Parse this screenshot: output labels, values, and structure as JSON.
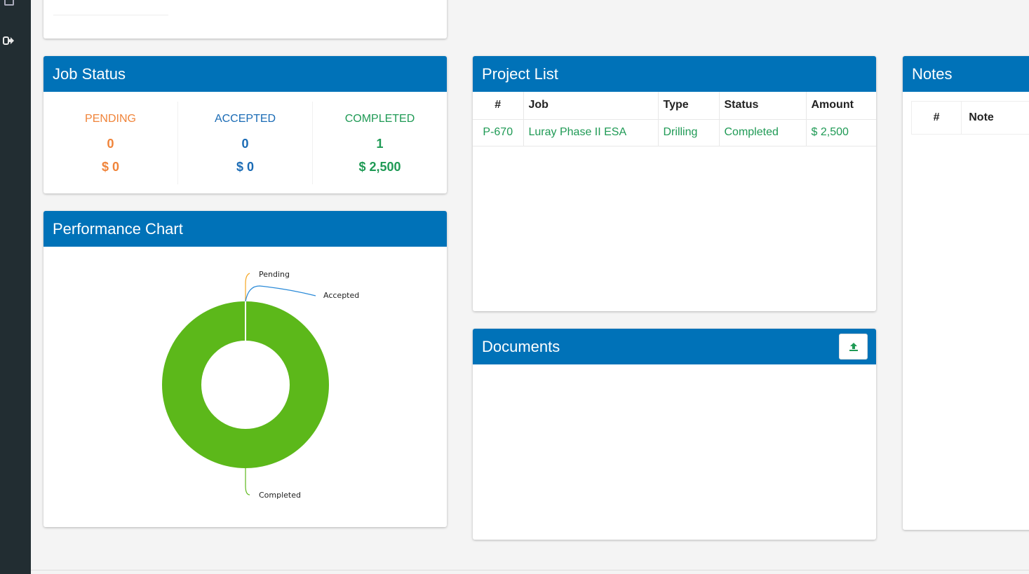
{
  "sidebar": {
    "top_icon": "dashboard-icon",
    "logout_icon": "sign-out-icon"
  },
  "job_status": {
    "title": "Job Status",
    "items": [
      {
        "label": "PENDING",
        "count": "0",
        "amount": "$ 0",
        "color": "#f0843a"
      },
      {
        "label": "ACCEPTED",
        "count": "0",
        "amount": "$ 0",
        "color": "#1a6bb5"
      },
      {
        "label": "COMPLETED",
        "count": "1",
        "amount": "$ 2,500",
        "color": "#1f9a55"
      }
    ]
  },
  "performance": {
    "title": "Performance Chart"
  },
  "chart_data": {
    "type": "pie",
    "donut": true,
    "categories": [
      "Pending",
      "Accepted",
      "Completed"
    ],
    "values": [
      0,
      0,
      1
    ],
    "colors": [
      "#f5a623",
      "#2a8ad8",
      "#5cb81a"
    ]
  },
  "project_list": {
    "title": "Project List",
    "columns": [
      "#",
      "Job",
      "Type",
      "Status",
      "Amount"
    ],
    "rows": [
      {
        "id": "P-670",
        "job": "Luray Phase II ESA",
        "type": "Drilling",
        "status": "Completed",
        "amount": "$ 2,500"
      }
    ]
  },
  "documents": {
    "title": "Documents",
    "upload_icon": "upload-icon"
  },
  "notes": {
    "title": "Notes",
    "columns": [
      "#",
      "Note"
    ]
  },
  "colors": {
    "header": "#0072b8",
    "sidebar": "#222d32"
  }
}
